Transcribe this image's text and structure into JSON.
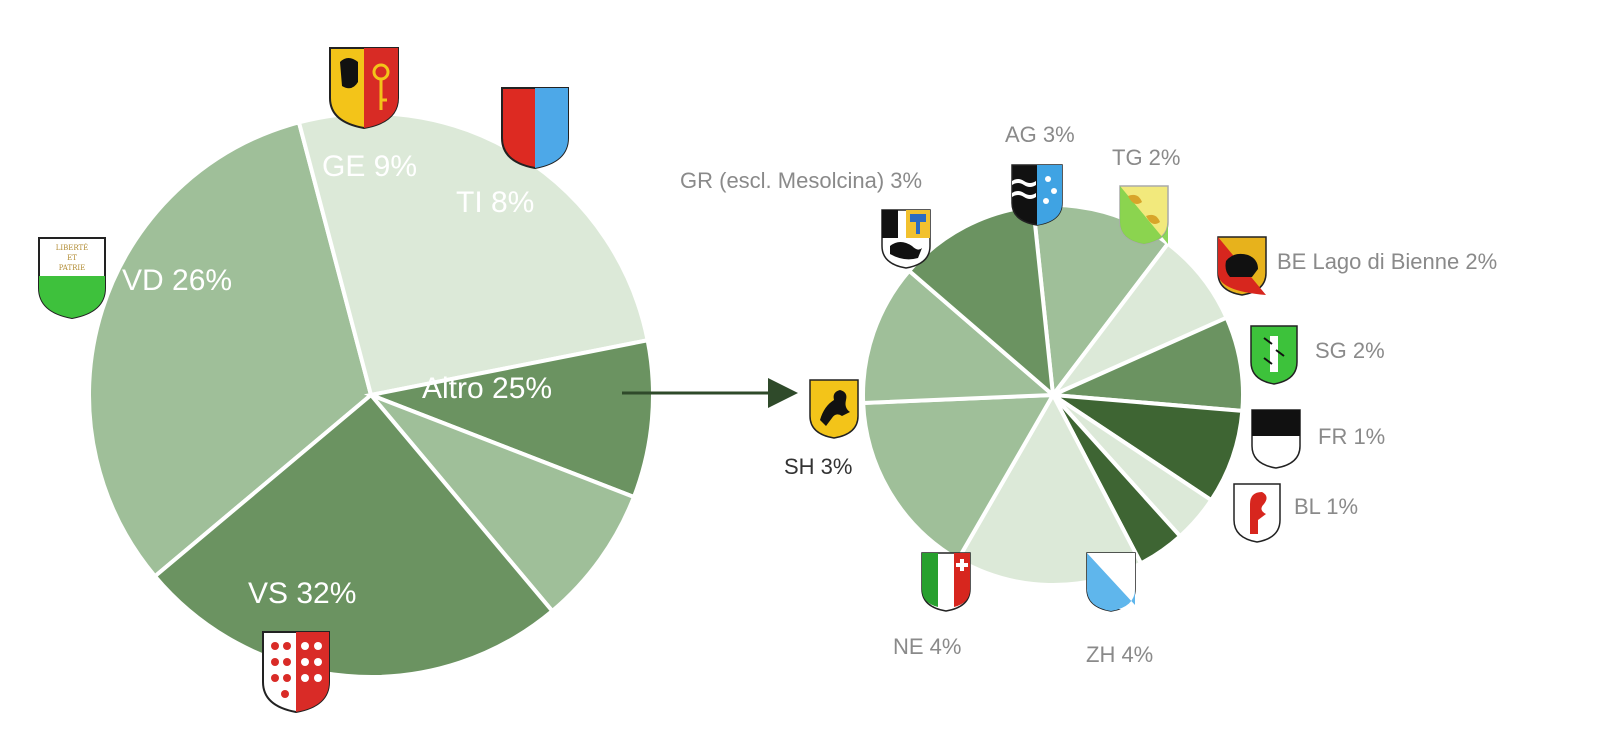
{
  "chart_data": [
    {
      "type": "pie",
      "slices": [
        {
          "label": "VS",
          "value": 32,
          "text": "VS 32%",
          "color": "#9fbf99"
        },
        {
          "label": "VD",
          "value": 26,
          "text": "VD 26%",
          "color": "#dce9d8"
        },
        {
          "label": "GE",
          "value": 9,
          "text": "GE 9%",
          "color": "#6b9361"
        },
        {
          "label": "TI",
          "value": 8,
          "text": "TI 8%",
          "color": "#9fbf99"
        },
        {
          "label": "Altro",
          "value": 25,
          "text": "Altro 25%",
          "color": "#6b9361"
        }
      ]
    },
    {
      "type": "pie",
      "slices": [
        {
          "label": "AG",
          "value": 3,
          "text": "AG 3%",
          "color": "#9fbf99"
        },
        {
          "label": "TG",
          "value": 2,
          "text": "TG 2%",
          "color": "#dce9d8"
        },
        {
          "label": "BE Lago di Bienne",
          "value": 2,
          "text": "BE Lago di Bienne 2%",
          "color": "#6b9361"
        },
        {
          "label": "SG",
          "value": 2,
          "text": "SG 2%",
          "color": "#3e6533"
        },
        {
          "label": "FR",
          "value": 1,
          "text": "FR 1%",
          "color": "#dce9d8"
        },
        {
          "label": "BL",
          "value": 1,
          "text": "BL 1%",
          "color": "#3e6533"
        },
        {
          "label": "ZH",
          "value": 4,
          "text": "ZH 4%",
          "color": "#dce9d8"
        },
        {
          "label": "NE",
          "value": 4,
          "text": "NE 4%",
          "color": "#9fbf99"
        },
        {
          "label": "SH",
          "value": 3,
          "text": "SH 3%",
          "color": "#9fbf99"
        },
        {
          "label": "GR (escl. Mesolcina)",
          "value": 3,
          "text": "GR (escl. Mesolcina) 3%",
          "color": "#6b9361"
        }
      ]
    }
  ],
  "icons": [
    "geneva-coat-of-arms-icon",
    "ticino-coat-of-arms-icon",
    "vaud-coat-of-arms-icon",
    "valais-coat-of-arms-icon",
    "aargau-coat-of-arms-icon",
    "thurgau-coat-of-arms-icon",
    "graubuenden-coat-of-arms-icon",
    "bern-coat-of-arms-icon",
    "st-gallen-coat-of-arms-icon",
    "fribourg-coat-of-arms-icon",
    "basel-land-coat-of-arms-icon",
    "zurich-coat-of-arms-icon",
    "neuchatel-coat-of-arms-icon",
    "schaffhausen-coat-of-arms-icon"
  ],
  "vaud_motto": "LIBERTÉ ET PATRIE",
  "colors": {
    "arrow": "#2f4a2a",
    "label_inside": "#ffffff",
    "label_outside": "#8a8a8a",
    "label_sh": "#333333"
  }
}
